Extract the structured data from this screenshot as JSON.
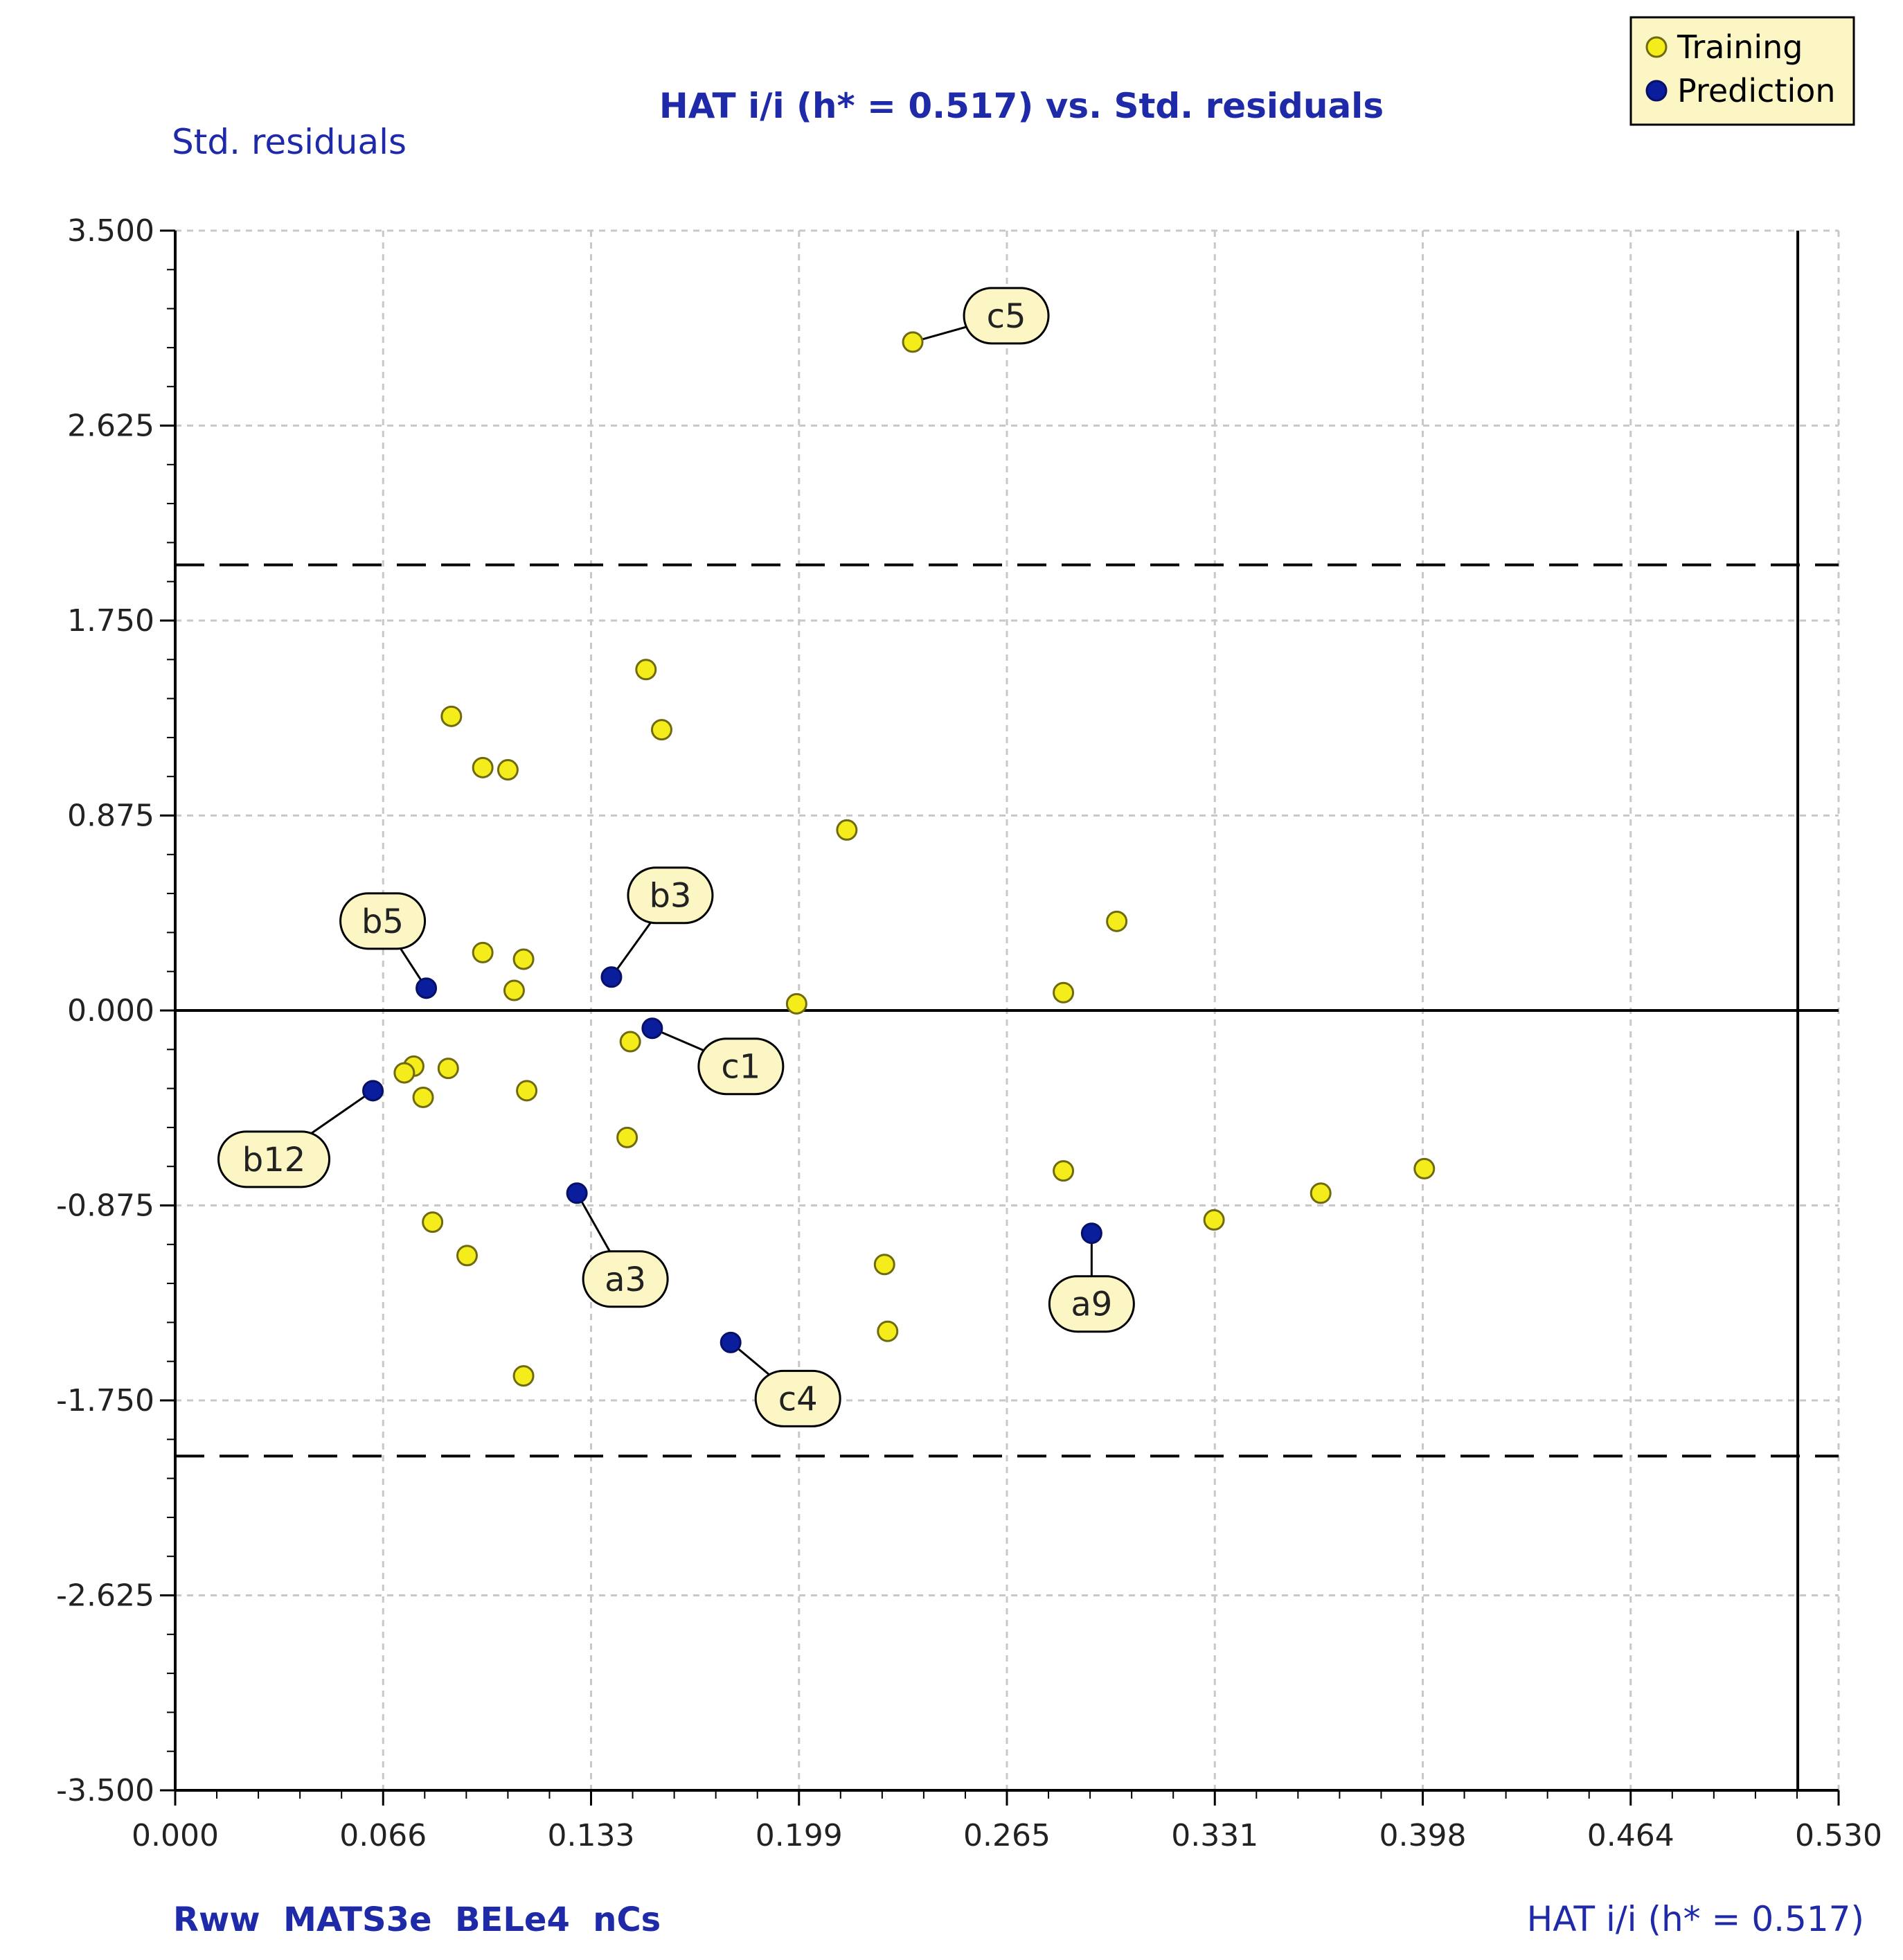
{
  "chart_data": {
    "type": "scatter",
    "title": "HAT i/i (h* = 0.517) vs. Std. residuals",
    "xlabel": "HAT i/i (h* = 0.517)",
    "ylabel": "Std. residuals",
    "descriptors": "Rww  MATS3e  BELe4  nCs",
    "xlim": [
      0.0,
      0.53
    ],
    "ylim": [
      -3.5,
      3.5
    ],
    "x_ticks": [
      "0.000",
      "0.066",
      "0.133",
      "0.199",
      "0.265",
      "0.331",
      "0.398",
      "0.464",
      "0.530"
    ],
    "y_ticks": [
      "3.500",
      "2.625",
      "1.750",
      "0.875",
      "0.000",
      "-0.875",
      "-1.750",
      "-2.625",
      "-3.500"
    ],
    "h_star": 0.517,
    "residual_limits": [
      2.0,
      -2.0
    ],
    "grid": true,
    "legend_position": "top-right",
    "colors": {
      "training_fill": "#f5ec1c",
      "training_stroke": "#6f6a10",
      "prediction_fill": "#0a1d9c",
      "prediction_stroke": "#061066",
      "callout_fill": "#fbf6c4",
      "title": "#1f2aa8",
      "grid": "#c8c8c8"
    },
    "series": [
      {
        "name": "Training",
        "points": [
          [
            0.235,
            3.0
          ],
          [
            0.15,
            1.53
          ],
          [
            0.155,
            1.26
          ],
          [
            0.088,
            1.32
          ],
          [
            0.098,
            1.09
          ],
          [
            0.106,
            1.08
          ],
          [
            0.214,
            0.81
          ],
          [
            0.3,
            0.4
          ],
          [
            0.098,
            0.26
          ],
          [
            0.111,
            0.23
          ],
          [
            0.108,
            0.09
          ],
          [
            0.198,
            0.03
          ],
          [
            0.283,
            0.08
          ],
          [
            0.145,
            -0.14
          ],
          [
            0.076,
            -0.25
          ],
          [
            0.073,
            -0.28
          ],
          [
            0.087,
            -0.26
          ],
          [
            0.079,
            -0.39
          ],
          [
            0.112,
            -0.36
          ],
          [
            0.144,
            -0.57
          ],
          [
            0.082,
            -0.95
          ],
          [
            0.093,
            -1.1
          ],
          [
            0.226,
            -1.14
          ],
          [
            0.111,
            -1.64
          ],
          [
            0.227,
            -1.44
          ],
          [
            0.283,
            -0.72
          ],
          [
            0.331,
            -0.94
          ],
          [
            0.365,
            -0.82
          ],
          [
            0.398,
            -0.71
          ]
        ]
      },
      {
        "name": "Prediction",
        "points": [
          [
            0.08,
            0.1
          ],
          [
            0.139,
            0.15
          ],
          [
            0.152,
            -0.08
          ],
          [
            0.063,
            -0.36
          ],
          [
            0.128,
            -0.82
          ],
          [
            0.177,
            -1.49
          ],
          [
            0.292,
            -1.0
          ]
        ]
      }
    ],
    "annotations": [
      {
        "label": "c5",
        "x": 0.235,
        "y": 3.0
      },
      {
        "label": "b3",
        "x": 0.139,
        "y": 0.15
      },
      {
        "label": "b5",
        "x": 0.08,
        "y": 0.1
      },
      {
        "label": "c1",
        "x": 0.152,
        "y": -0.08
      },
      {
        "label": "b12",
        "x": 0.063,
        "y": -0.36
      },
      {
        "label": "a3",
        "x": 0.128,
        "y": -0.82
      },
      {
        "label": "a9",
        "x": 0.292,
        "y": -1.0
      },
      {
        "label": "c4",
        "x": 0.177,
        "y": -1.49
      }
    ]
  }
}
